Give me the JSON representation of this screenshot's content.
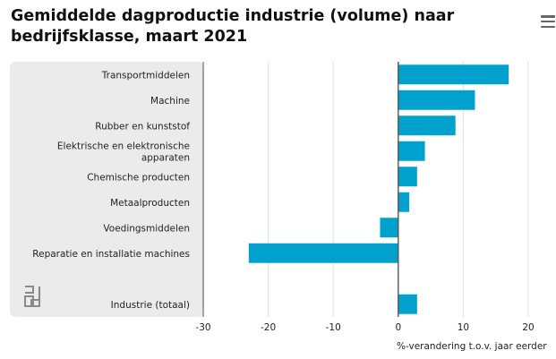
{
  "title": "Gemiddelde dagproductie industrie (volume) naar bedrijfsklasse, maart 2021",
  "menu_icon": "hamburger-menu-icon",
  "logo_icon": "cbs-logo-icon",
  "colors": {
    "bar": "#00a1cd",
    "panel": "#ebebeb",
    "grid": "#e0e0e0",
    "axis": "#555555"
  },
  "chart_data": {
    "type": "bar",
    "orientation": "horizontal",
    "title": "Gemiddelde dagproductie industrie (volume) naar bedrijfsklasse, maart 2021",
    "xlabel": "%-verandering t.o.v. jaar eerder",
    "ylabel": "",
    "xlim": [
      -30,
      20
    ],
    "xticks": [
      -30,
      -20,
      -10,
      0,
      10,
      20
    ],
    "grid": true,
    "categories": [
      "Transportmiddelen",
      "Machine",
      "Rubber en kunststof",
      "Elektrische en elektronische apparaten",
      "Chemische producten",
      "Metaalproducten",
      "Voedingsmiddelen",
      "Reparatie en installatie machines",
      "",
      "Industrie (totaal)"
    ],
    "category_lines": [
      [
        "Transportmiddelen"
      ],
      [
        "Machine"
      ],
      [
        "Rubber en kunststof"
      ],
      [
        "Elektrische en elektronische",
        "apparaten"
      ],
      [
        "Chemische producten"
      ],
      [
        "Metaalproducten"
      ],
      [
        "Voedingsmiddelen"
      ],
      [
        "Reparatie en installatie machines"
      ],
      [],
      [
        "Industrie (totaal)"
      ]
    ],
    "values": [
      17,
      11.8,
      8.8,
      4.1,
      2.9,
      1.7,
      -2.8,
      -23,
      null,
      2.9
    ]
  }
}
